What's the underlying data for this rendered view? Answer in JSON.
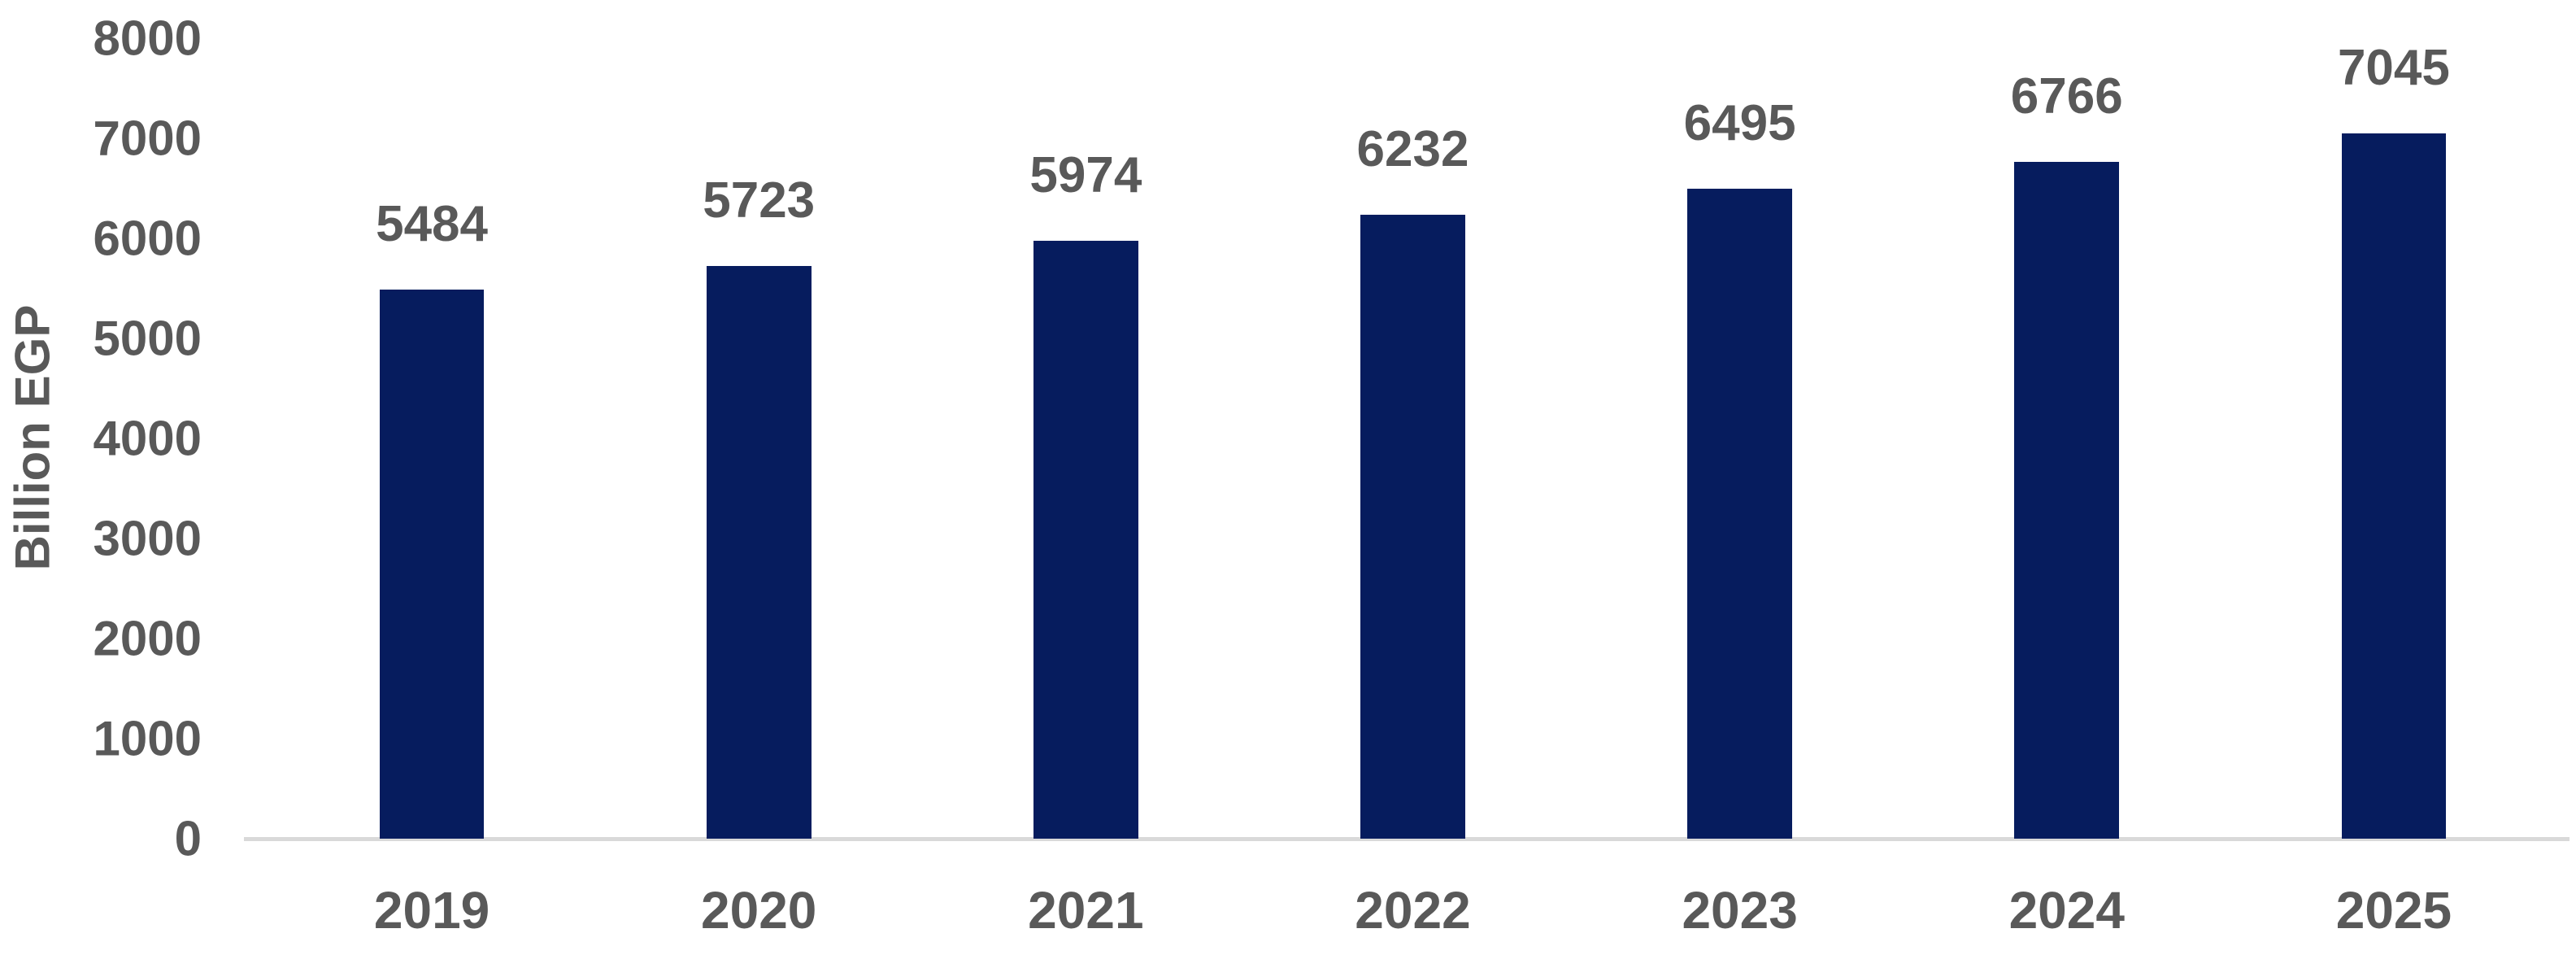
{
  "chart_data": {
    "type": "bar",
    "title": "",
    "xlabel": "",
    "ylabel": "Billion EGP",
    "categories": [
      "2019",
      "2020",
      "2021",
      "2022",
      "2023",
      "2024",
      "2025"
    ],
    "values": [
      5484,
      5723,
      5974,
      6232,
      6495,
      6766,
      7045
    ],
    "data_labels": [
      "5484",
      "5723",
      "5974",
      "6232",
      "6495",
      "6766",
      "7045"
    ],
    "ylim": [
      0,
      8000
    ],
    "yticks": [
      0,
      1000,
      2000,
      3000,
      4000,
      5000,
      6000,
      7000,
      8000
    ],
    "grid": false,
    "legend": "none",
    "colors": {
      "bar": "#061C5E",
      "text": "#595959",
      "axis_line": "#D9D9D9",
      "background": "#FFFFFF"
    }
  }
}
